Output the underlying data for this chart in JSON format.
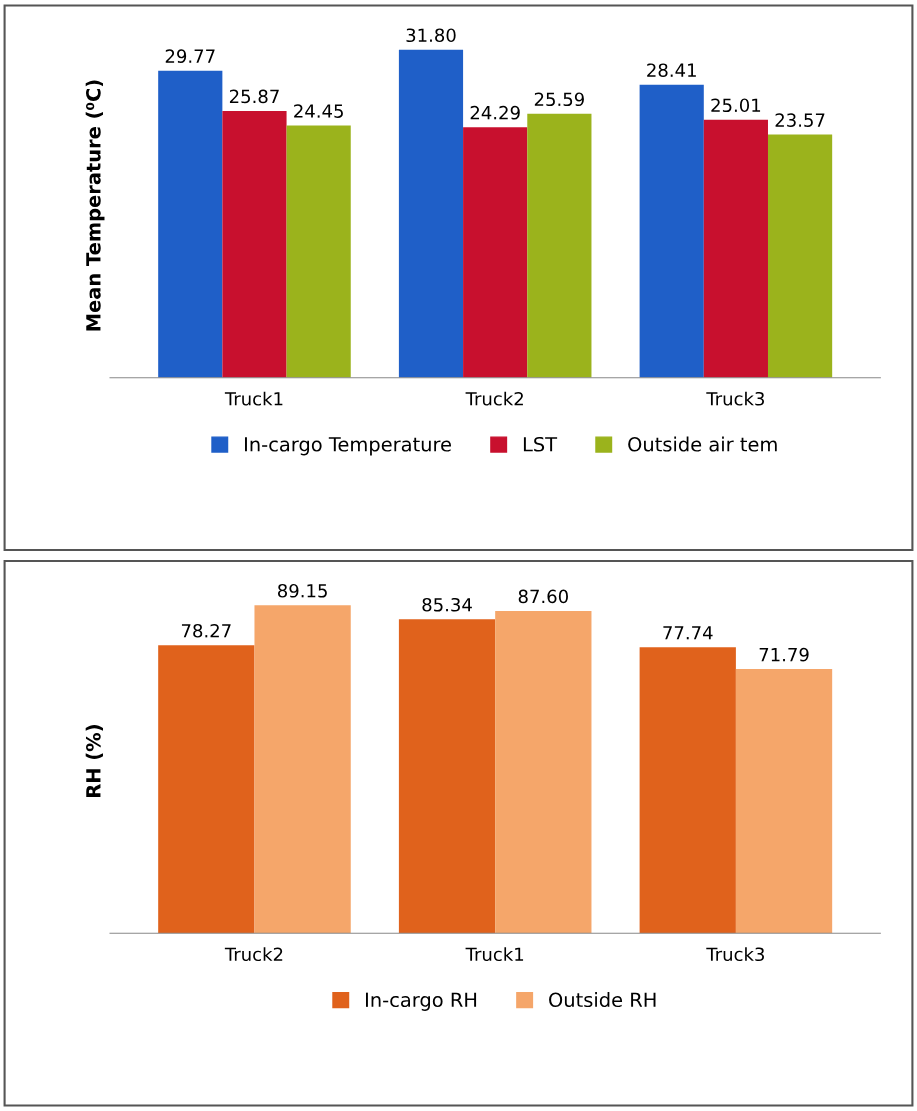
{
  "chart_data": [
    {
      "type": "bar",
      "ylabel": "Mean Temperature (⁰C)",
      "categories": [
        "Truck1",
        "Truck2",
        "Truck3"
      ],
      "series": [
        {
          "name": "In-cargo Temperature",
          "color": "#1f5fc8",
          "values": [
            29.77,
            31.8,
            28.41
          ],
          "value_labels": [
            "29.77",
            "31.80",
            "28.41"
          ]
        },
        {
          "name": "LST",
          "color": "#c8102e",
          "values": [
            25.87,
            24.29,
            25.01
          ],
          "value_labels": [
            "25.87",
            "24.29",
            "25.01"
          ]
        },
        {
          "name": "Outside air tem",
          "color": "#9bb31c",
          "values": [
            24.45,
            25.59,
            23.57
          ],
          "value_labels": [
            "24.45",
            "25.59",
            "23.57"
          ]
        }
      ],
      "legend": "bottom",
      "tick_labels": "x",
      "grid": false
    },
    {
      "type": "bar",
      "ylabel": "RH (%)",
      "categories": [
        "Truck2",
        "Truck1",
        "Truck3"
      ],
      "series": [
        {
          "name": "In-cargo RH",
          "color": "#e0621c",
          "values": [
            78.27,
            85.34,
            77.74
          ],
          "value_labels": [
            "78.27",
            "85.34",
            "77.74"
          ]
        },
        {
          "name": "Outside RH",
          "color": "#f5a66a",
          "values": [
            89.15,
            87.6,
            71.79
          ],
          "value_labels": [
            "89.15",
            "87.60",
            "71.79"
          ]
        }
      ],
      "legend": "bottom",
      "tick_labels": "x",
      "grid": false
    }
  ]
}
